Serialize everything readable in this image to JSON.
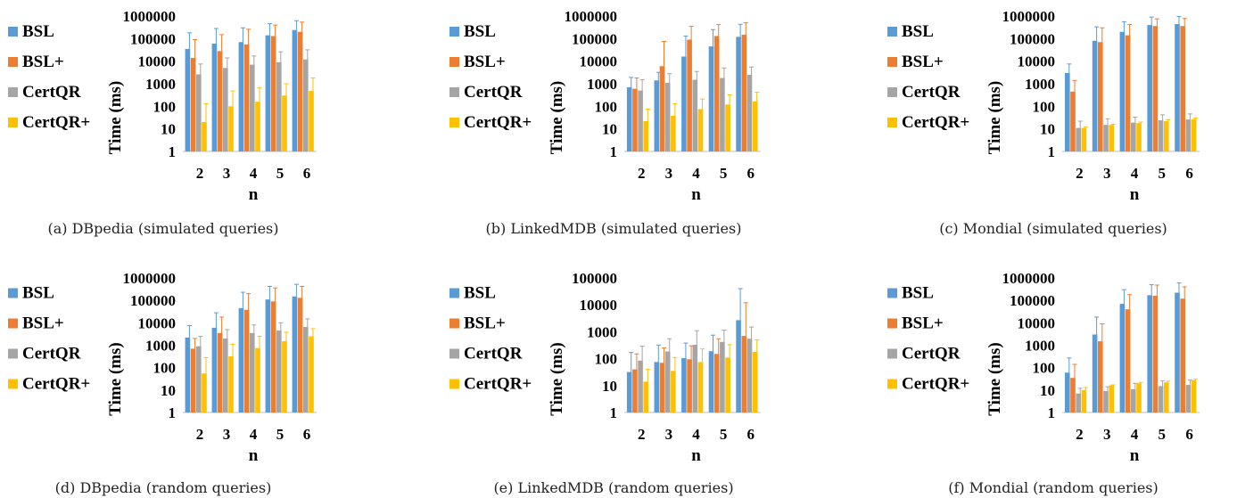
{
  "series_colors": {
    "BSL": "#5b9bd5",
    "BSL+": "#ed7d31",
    "CertQR": "#a5a5a5",
    "CertQR+": "#ffc000"
  },
  "chart_data": [
    {
      "type": "bar",
      "caption": "(a) DBpedia (simulated queries)",
      "categories": [
        "2",
        "3",
        "4",
        "5",
        "6"
      ],
      "xlabel": "n",
      "ylabel": "Time (ms)",
      "yscale": "log",
      "ylim": [
        1,
        1000000
      ],
      "yticks": [
        "1",
        "10",
        "100",
        "1000",
        "10000",
        "100000",
        "1000000"
      ],
      "legend": "left",
      "grid": false,
      "series": [
        {
          "name": "BSL",
          "values": [
            35000,
            60000,
            70000,
            140000,
            240000
          ],
          "errors": [
            180000,
            280000,
            300000,
            460000,
            620000
          ]
        },
        {
          "name": "BSL+",
          "values": [
            14000,
            28000,
            55000,
            130000,
            200000
          ],
          "errors": [
            90000,
            150000,
            260000,
            400000,
            540000
          ]
        },
        {
          "name": "CertQR",
          "values": [
            2600,
            5000,
            7000,
            9000,
            12000
          ],
          "errors": [
            7500,
            14000,
            17000,
            26000,
            32000
          ]
        },
        {
          "name": "CertQR+",
          "values": [
            20,
            100,
            160,
            300,
            480
          ],
          "errors": [
            130,
            480,
            650,
            1000,
            1800
          ]
        }
      ]
    },
    {
      "type": "bar",
      "caption": "(b) LinkedMDB (simulated queries)",
      "categories": [
        "2",
        "3",
        "4",
        "5",
        "6"
      ],
      "xlabel": "n",
      "ylabel": "Time (ms)",
      "yscale": "log",
      "ylim": [
        1,
        1000000
      ],
      "yticks": [
        "1",
        "10",
        "100",
        "1000",
        "10000",
        "100000",
        "1000000"
      ],
      "legend": "left",
      "grid": false,
      "series": [
        {
          "name": "BSL",
          "values": [
            700,
            1400,
            16000,
            45000,
            120000
          ],
          "errors": [
            1900,
            3200,
            130000,
            250000,
            430000
          ]
        },
        {
          "name": "BSL+",
          "values": [
            600,
            6000,
            90000,
            130000,
            150000
          ],
          "errors": [
            1800,
            75000,
            350000,
            420000,
            500000
          ]
        },
        {
          "name": "CertQR",
          "values": [
            500,
            1100,
            1500,
            1800,
            2500
          ],
          "errors": [
            1500,
            2800,
            3500,
            5000,
            5500
          ]
        },
        {
          "name": "CertQR+",
          "values": [
            22,
            38,
            75,
            120,
            165
          ],
          "errors": [
            75,
            130,
            210,
            320,
            420
          ]
        }
      ]
    },
    {
      "type": "bar",
      "caption": "(c) Mondial (simulated queries)",
      "categories": [
        "2",
        "3",
        "4",
        "5",
        "6"
      ],
      "xlabel": "n",
      "ylabel": "Time (ms)",
      "yscale": "log",
      "ylim": [
        1,
        1000000
      ],
      "yticks": [
        "1",
        "10",
        "100",
        "1000",
        "10000",
        "100000",
        "1000000"
      ],
      "legend": "left",
      "grid": false,
      "series": [
        {
          "name": "BSL",
          "values": [
            3000,
            80000,
            200000,
            400000,
            440000
          ],
          "errors": [
            7500,
            330000,
            560000,
            900000,
            950000
          ]
        },
        {
          "name": "BSL+",
          "values": [
            450,
            70000,
            140000,
            360000,
            360000
          ],
          "errors": [
            1400,
            300000,
            420000,
            750000,
            780000
          ]
        },
        {
          "name": "CertQR",
          "values": [
            11,
            15,
            19,
            24,
            26
          ],
          "errors": [
            22,
            28,
            33,
            42,
            46
          ]
        },
        {
          "name": "CertQR+",
          "values": [
            11,
            15,
            18,
            22,
            27
          ],
          "errors": [
            12,
            16,
            20,
            25,
            30
          ]
        }
      ]
    },
    {
      "type": "bar",
      "caption": "(d) DBpedia (random queries)",
      "categories": [
        "2",
        "3",
        "4",
        "5",
        "6"
      ],
      "xlabel": "n",
      "ylabel": "Time (ms)",
      "yscale": "log",
      "ylim": [
        1,
        1000000
      ],
      "yticks": [
        "1",
        "10",
        "100",
        "1000",
        "10000",
        "100000",
        "1000000"
      ],
      "legend": "left",
      "grid": false,
      "series": [
        {
          "name": "BSL",
          "values": [
            2200,
            6000,
            45000,
            110000,
            150000
          ],
          "errors": [
            7500,
            28000,
            230000,
            420000,
            520000
          ]
        },
        {
          "name": "BSL+",
          "values": [
            700,
            3500,
            38000,
            90000,
            130000
          ],
          "errors": [
            2000,
            18000,
            200000,
            360000,
            420000
          ]
        },
        {
          "name": "CertQR",
          "values": [
            900,
            2000,
            3500,
            4500,
            6500
          ],
          "errors": [
            2500,
            5000,
            8000,
            10000,
            15000
          ]
        },
        {
          "name": "CertQR+",
          "values": [
            55,
            320,
            750,
            1500,
            2500
          ],
          "errors": [
            280,
            1100,
            2500,
            3800,
            5500
          ]
        }
      ]
    },
    {
      "type": "bar",
      "caption": "(e) LinkedMDB (random queries)",
      "categories": [
        "2",
        "3",
        "4",
        "5",
        "6"
      ],
      "xlabel": "n",
      "ylabel": "Time (ms)",
      "yscale": "log",
      "ylim": [
        1,
        100000
      ],
      "yticks": [
        "1",
        "10",
        "100",
        "1000",
        "10000",
        "100000"
      ],
      "legend": "left",
      "grid": false,
      "series": [
        {
          "name": "BSL",
          "values": [
            32,
            75,
            105,
            190,
            2700
          ],
          "errors": [
            170,
            320,
            380,
            750,
            40000
          ]
        },
        {
          "name": "BSL+",
          "values": [
            40,
            70,
            95,
            150,
            700
          ],
          "errors": [
            150,
            250,
            300,
            550,
            12000
          ]
        },
        {
          "name": "CertQR",
          "values": [
            85,
            185,
            330,
            420,
            550
          ],
          "errors": [
            290,
            550,
            1100,
            1150,
            1500
          ]
        },
        {
          "name": "CertQR+",
          "values": [
            14,
            35,
            75,
            110,
            180
          ],
          "errors": [
            40,
            110,
            230,
            330,
            500
          ]
        }
      ]
    },
    {
      "type": "bar",
      "caption": "(f) Mondial (random queries)",
      "categories": [
        "2",
        "3",
        "4",
        "5",
        "6"
      ],
      "xlabel": "n",
      "ylabel": "Time (ms)",
      "yscale": "log",
      "ylim": [
        1,
        1000000
      ],
      "yticks": [
        "1",
        "10",
        "100",
        "1000",
        "10000",
        "100000",
        "1000000"
      ],
      "legend": "left",
      "grid": false,
      "series": [
        {
          "name": "BSL",
          "values": [
            60,
            3000,
            70000,
            170000,
            220000
          ],
          "errors": [
            270,
            18000,
            300000,
            500000,
            600000
          ]
        },
        {
          "name": "BSL+",
          "values": [
            35,
            1500,
            40000,
            160000,
            120000
          ],
          "errors": [
            140,
            9000,
            180000,
            480000,
            400000
          ]
        },
        {
          "name": "CertQR",
          "values": [
            7,
            9,
            11,
            15,
            17
          ],
          "errors": [
            12,
            14,
            20,
            26,
            28
          ]
        },
        {
          "name": "CertQR+",
          "values": [
            10,
            16,
            20,
            22,
            27
          ],
          "errors": [
            13,
            17,
            22,
            25,
            30
          ]
        }
      ]
    }
  ]
}
